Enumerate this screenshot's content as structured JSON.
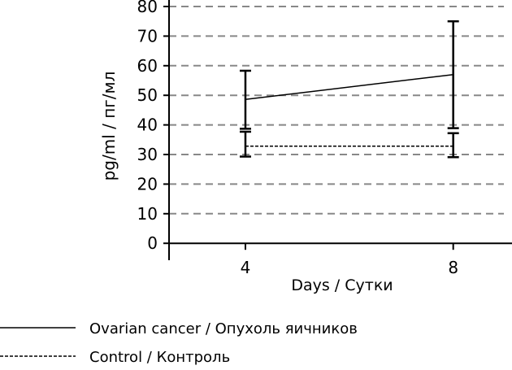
{
  "chart_data": {
    "type": "line",
    "title": "",
    "xlabel": "Days / Сутки",
    "ylabel": "pg/ml / пг/мл",
    "x": [
      4,
      8
    ],
    "x_ticks": [
      "4",
      "8"
    ],
    "xlim": [
      2.53,
      9.1
    ],
    "ylim": [
      0,
      80
    ],
    "y_ticks": [
      "0",
      "10",
      "20",
      "30",
      "40",
      "50",
      "60",
      "70",
      "80"
    ],
    "grid": "horizontal dashed",
    "grid_color": "#888888",
    "legend_position": "bottom-left",
    "series": [
      {
        "name": "Ovarian cancer / Опухоль яичников",
        "style": "solid",
        "color": "#000000",
        "values": [
          48.6,
          57.0
        ],
        "err_upper": [
          58.3,
          75.0
        ],
        "err_lower": [
          38.7,
          38.9
        ]
      },
      {
        "name": "Control / Контроль",
        "style": "dashed",
        "color": "#000000",
        "values": [
          32.8,
          32.8
        ],
        "err_upper": [
          37.7,
          37.2
        ],
        "err_lower": [
          29.3,
          29.1
        ]
      }
    ]
  }
}
